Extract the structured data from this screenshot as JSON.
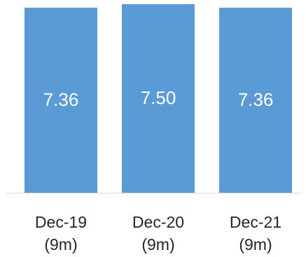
{
  "chart_data": {
    "type": "bar",
    "categories": [
      [
        "Dec-19",
        "(9m)"
      ],
      [
        "Dec-20",
        "(9m)"
      ],
      [
        "Dec-21",
        "(9m)"
      ]
    ],
    "values": [
      7.36,
      7.5,
      7.36
    ],
    "data_labels": [
      "7.36",
      "7.50",
      "7.36"
    ],
    "ylim": [
      0,
      7.5
    ],
    "grid": false,
    "legend": "none",
    "colors": {
      "bar": "#5b9bd5",
      "axis": "#d9d9d9",
      "data_label": "#ffffff",
      "tick_label": "#262626"
    }
  }
}
